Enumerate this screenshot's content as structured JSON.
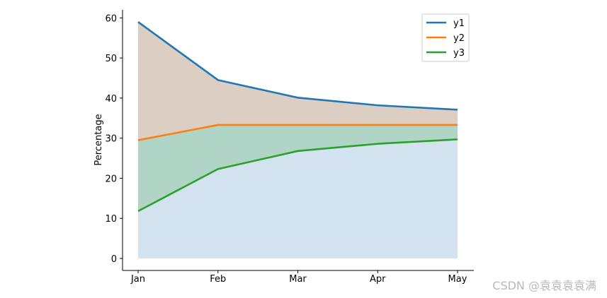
{
  "chart_data": {
    "type": "area",
    "categories": [
      "Jan",
      "Feb",
      "Mar",
      "Apr",
      "May"
    ],
    "series": [
      {
        "name": "y1",
        "values": [
          59.0,
          44.5,
          40.1,
          38.2,
          37.1
        ]
      },
      {
        "name": "y2",
        "values": [
          29.5,
          33.3,
          33.3,
          33.3,
          33.3
        ]
      },
      {
        "name": "y3",
        "values": [
          11.8,
          22.3,
          26.8,
          28.6,
          29.7
        ]
      }
    ],
    "ylabel": "Percentage",
    "xlabel": "",
    "ylim": [
      -3,
      62
    ],
    "yticks": [
      "0",
      "10",
      "20",
      "30",
      "40",
      "50",
      "60"
    ],
    "grid": false,
    "legend": "top-right",
    "colors": {
      "y1": "#1f77b4",
      "y2": "#ff7f0e",
      "y3": "#2ca02c",
      "fill_top": "#dccec3",
      "fill_middle": "#b0d5c6",
      "fill_bottom": "#d2e2ee"
    }
  },
  "watermark": "CSDN @袁袁袁袁满"
}
